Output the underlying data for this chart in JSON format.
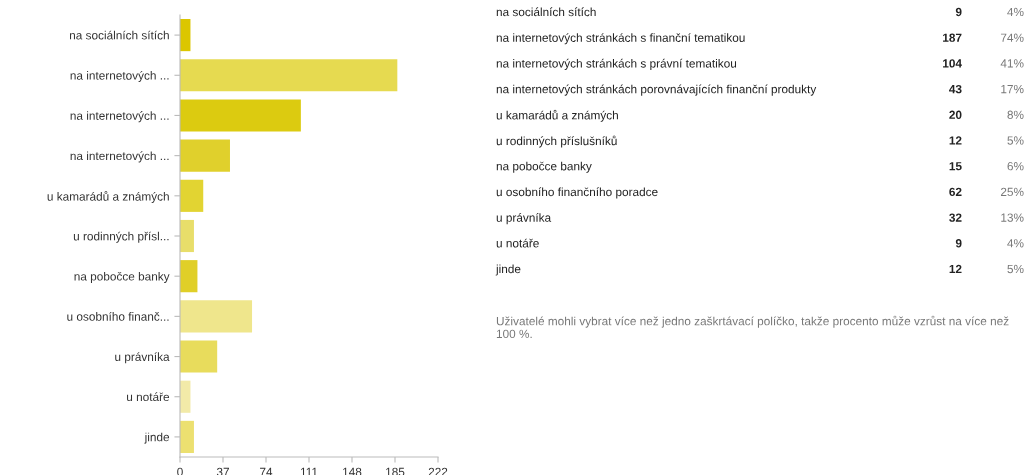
{
  "chart_data": [
    {
      "type": "bar",
      "orientation": "horizontal",
      "categories": [
        "na sociálních sítích",
        "na internetových ...",
        "na internetových ...",
        "na internetových ...",
        "u kamarádů a známých",
        "u rodinných přísl...",
        "na pobočce banky",
        "u osobního finanč...",
        "u právníka",
        "u notáře",
        "jinde"
      ],
      "values": [
        9,
        187,
        104,
        43,
        20,
        12,
        15,
        62,
        32,
        9,
        12
      ],
      "colors": [
        "#dcc600",
        "#e6da50",
        "#dccb10",
        "#e0d02c",
        "#e2d432",
        "#e8de6a",
        "#e0cf28",
        "#efe68c",
        "#e8dc5c",
        "#f2eaa8",
        "#ece070"
      ],
      "xlim": [
        0,
        222
      ],
      "xticks": [
        0,
        37,
        74,
        111,
        148,
        185,
        222
      ],
      "grid": false
    },
    {
      "type": "other",
      "annotations": [
        "na sociálních sítích",
        "na internetových stránkách s finanční tematikou",
        "na internetových stránkách s právní tematikou",
        "na internetových stránkách porovnávajících finanční produkty",
        "u kamarádů a známých",
        "u rodinných příslušníků",
        "na pobočce banky",
        "u osobního finančního poradce",
        "u právníka",
        "u notáře",
        "jinde",
        "9",
        "187",
        "104",
        "43",
        "20",
        "12",
        "15",
        "62",
        "32",
        "9",
        "12",
        "4%",
        "74%",
        "41%",
        "17%",
        "8%",
        "5%",
        "6%",
        "25%",
        "13%",
        "4%",
        "5%",
        "Uživatelé mohli vybrat více než jedno zaškrtávací políčko, takže procento může vzrůst na více než 100 %."
      ]
    }
  ]
}
